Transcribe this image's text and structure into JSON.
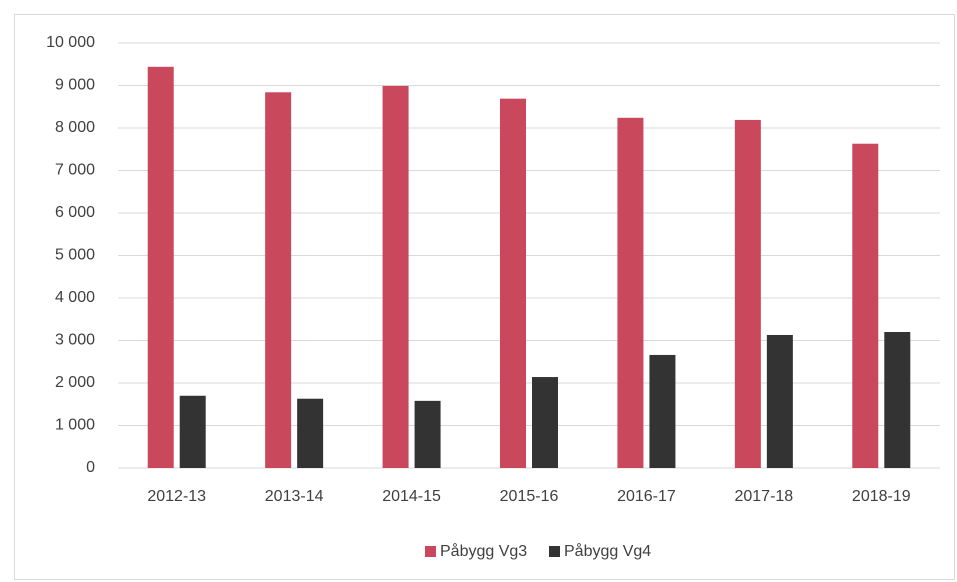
{
  "chart_data": {
    "type": "bar",
    "categories": [
      "2012-13",
      "2013-14",
      "2014-15",
      "2015-16",
      "2016-17",
      "2017-18",
      "2018-19"
    ],
    "series": [
      {
        "name": "Påbygg Vg3",
        "color": "#c9485b",
        "values": [
          9440,
          8840,
          8990,
          8690,
          8240,
          8190,
          7630
        ]
      },
      {
        "name": "Påbygg Vg4",
        "color": "#333333",
        "values": [
          1700,
          1630,
          1580,
          2140,
          2660,
          3130,
          3200
        ]
      }
    ],
    "ylim": [
      0,
      10000
    ],
    "yticks": [
      0,
      {
        "value": 1000,
        "label": "1 000"
      },
      {
        "value": 2000,
        "label": "2 000"
      },
      {
        "value": 3000,
        "label": "3 000"
      },
      {
        "value": 4000,
        "label": "4 000"
      },
      {
        "value": 5000,
        "label": "5 000"
      },
      {
        "value": 6000,
        "label": "6 000"
      },
      {
        "value": 7000,
        "label": "7 000"
      },
      {
        "value": 8000,
        "label": "8 000"
      },
      {
        "value": 9000,
        "label": "9 000"
      },
      {
        "value": 10000,
        "label": "10 000"
      }
    ],
    "grid": true,
    "legend": "bottom"
  }
}
